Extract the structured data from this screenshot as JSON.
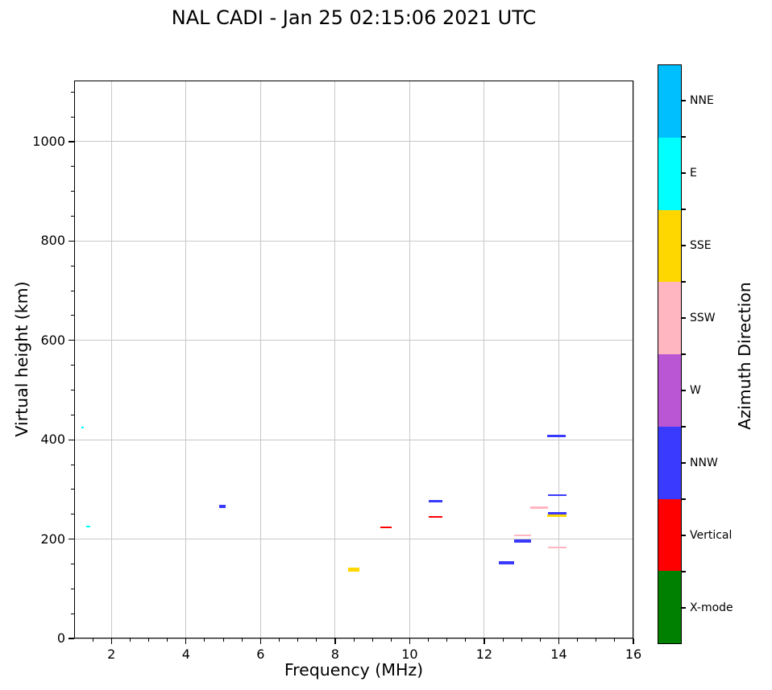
{
  "chart_data": {
    "type": "scatter",
    "title": "NAL CADI - Jan 25 02:15:06 2021 UTC",
    "xlabel": "Frequency (MHz)",
    "ylabel": "Virtual height (km)",
    "xlim": [
      1,
      16
    ],
    "ylim": [
      0,
      1123
    ],
    "x_major_ticks": [
      2,
      4,
      6,
      8,
      10,
      12,
      14,
      16
    ],
    "x_minor_step": 0.5,
    "y_major_ticks": [
      0,
      200,
      400,
      600,
      800,
      1000
    ],
    "y_minor_step": 50,
    "grid": "major",
    "grid_color": "#c8c8c8",
    "marker_style": "horizontal-dash",
    "points": [
      {
        "freq_mhz": 1.22,
        "height_km": 425,
        "direction": "E",
        "width_mhz": 0.07,
        "thickness_px": 2
      },
      {
        "freq_mhz": 1.38,
        "height_km": 226,
        "direction": "E",
        "width_mhz": 0.12,
        "thickness_px": 2
      },
      {
        "freq_mhz": 4.98,
        "height_km": 265,
        "direction": "NNW",
        "width_mhz": 0.16,
        "thickness_px": 4
      },
      {
        "freq_mhz": 8.5,
        "height_km": 138,
        "direction": "SSE",
        "width_mhz": 0.3,
        "thickness_px": 5
      },
      {
        "freq_mhz": 9.37,
        "height_km": 223,
        "direction": "Vertical",
        "width_mhz": 0.3,
        "thickness_px": 2
      },
      {
        "freq_mhz": 10.7,
        "height_km": 276,
        "direction": "NNW",
        "width_mhz": 0.36,
        "thickness_px": 3.5
      },
      {
        "freq_mhz": 10.7,
        "height_km": 245,
        "direction": "Vertical",
        "width_mhz": 0.36,
        "thickness_px": 2.5
      },
      {
        "freq_mhz": 12.6,
        "height_km": 152,
        "direction": "NNW",
        "width_mhz": 0.42,
        "thickness_px": 3.5
      },
      {
        "freq_mhz": 13.03,
        "height_km": 207,
        "direction": "SSW",
        "width_mhz": 0.45,
        "thickness_px": 2
      },
      {
        "freq_mhz": 13.03,
        "height_km": 196,
        "direction": "NNW",
        "width_mhz": 0.45,
        "thickness_px": 3.5
      },
      {
        "freq_mhz": 13.47,
        "height_km": 263,
        "direction": "SSW",
        "width_mhz": 0.48,
        "thickness_px": 2.5
      },
      {
        "freq_mhz": 13.95,
        "height_km": 289,
        "direction": "NNW",
        "width_mhz": 0.5,
        "thickness_px": 2
      },
      {
        "freq_mhz": 13.95,
        "height_km": 252,
        "direction": "NNW",
        "width_mhz": 0.5,
        "thickness_px": 3.5
      },
      {
        "freq_mhz": 13.95,
        "height_km": 247,
        "direction": "SSE",
        "width_mhz": 0.52,
        "thickness_px": 3
      },
      {
        "freq_mhz": 13.95,
        "height_km": 183,
        "direction": "SSW",
        "width_mhz": 0.5,
        "thickness_px": 2
      },
      {
        "freq_mhz": 13.93,
        "height_km": 408,
        "direction": "NNW",
        "width_mhz": 0.5,
        "thickness_px": 3
      }
    ],
    "colorbar": {
      "label": "Azimuth Direction",
      "position": "right",
      "bands_top_to_bottom": [
        {
          "label": "NNE",
          "color": "#00BFFF"
        },
        {
          "label": "E",
          "color": "#00FFFF"
        },
        {
          "label": "SSE",
          "color": "#FFD700"
        },
        {
          "label": "SSW",
          "color": "#FFB6C1"
        },
        {
          "label": "W",
          "color": "#BA55D3"
        },
        {
          "label": "NNW",
          "color": "#3A3AFF"
        },
        {
          "label": "Vertical",
          "color": "#FF0000"
        },
        {
          "label": "X-mode",
          "color": "#008000"
        }
      ]
    }
  }
}
